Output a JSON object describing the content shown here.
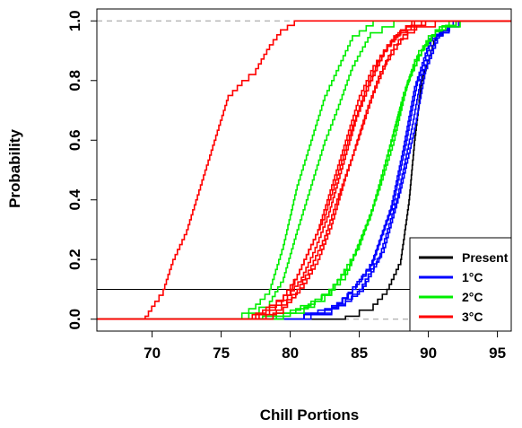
{
  "chart_data": {
    "type": "line",
    "title": "",
    "xlabel": "Chill Portions",
    "ylabel": "Probability",
    "xlim": [
      66,
      96
    ],
    "ylim": [
      -0.04,
      1.04
    ],
    "x_ticks": [
      "70",
      "75",
      "80",
      "85",
      "90",
      "95"
    ],
    "y_ticks": [
      "0.0",
      "0.2",
      "0.4",
      "0.6",
      "0.8",
      "1.0"
    ],
    "reference_lines": {
      "dashed_y": [
        0,
        1
      ],
      "solid_y": 0.1
    },
    "legend": {
      "placement": "bottom-right",
      "entries": [
        {
          "label": "Present",
          "color": "#000000"
        },
        {
          "label": "1°C",
          "color": "#0000ff"
        },
        {
          "label": "2°C",
          "color": "#00ee00"
        },
        {
          "label": "3°C",
          "color": "#ff0000"
        }
      ]
    },
    "series": [
      {
        "color": "#000000",
        "values": [
          [
            66,
            0
          ],
          [
            80,
            0
          ],
          [
            84,
            0.01
          ],
          [
            86,
            0.05
          ],
          [
            87,
            0.1
          ],
          [
            88,
            0.2
          ],
          [
            88.6,
            0.4
          ],
          [
            89,
            0.6
          ],
          [
            89.5,
            0.8
          ],
          [
            90.5,
            0.95
          ],
          [
            92,
            1
          ],
          [
            96,
            1
          ]
        ]
      },
      {
        "color": "#0000ff",
        "values": [
          [
            66,
            0
          ],
          [
            79,
            0
          ],
          [
            81,
            0.02
          ],
          [
            83,
            0.04
          ],
          [
            84.5,
            0.1
          ],
          [
            86,
            0.2
          ],
          [
            87.5,
            0.4
          ],
          [
            88.4,
            0.6
          ],
          [
            89.2,
            0.8
          ],
          [
            90.3,
            0.95
          ],
          [
            92,
            1
          ],
          [
            96,
            1
          ]
        ]
      },
      {
        "color": "#0000ff",
        "values": [
          [
            66,
            0
          ],
          [
            79.5,
            0
          ],
          [
            81.5,
            0.02
          ],
          [
            83.5,
            0.05
          ],
          [
            85,
            0.1
          ],
          [
            86.5,
            0.22
          ],
          [
            87.8,
            0.42
          ],
          [
            88.7,
            0.62
          ],
          [
            89.5,
            0.82
          ],
          [
            90.6,
            0.95
          ],
          [
            92,
            1
          ],
          [
            96,
            1
          ]
        ]
      },
      {
        "color": "#0000ff",
        "values": [
          [
            66,
            0
          ],
          [
            80,
            0
          ],
          [
            82,
            0.03
          ],
          [
            84,
            0.06
          ],
          [
            85.3,
            0.11
          ],
          [
            86.8,
            0.24
          ],
          [
            88,
            0.44
          ],
          [
            89,
            0.64
          ],
          [
            89.8,
            0.84
          ],
          [
            90.8,
            0.96
          ],
          [
            92.2,
            1
          ],
          [
            96,
            1
          ]
        ]
      },
      {
        "color": "#0000ff",
        "values": [
          [
            66,
            0
          ],
          [
            79,
            0
          ],
          [
            81,
            0.015
          ],
          [
            83,
            0.035
          ],
          [
            84.2,
            0.09
          ],
          [
            85.8,
            0.18
          ],
          [
            87.3,
            0.38
          ],
          [
            88.2,
            0.58
          ],
          [
            89,
            0.78
          ],
          [
            90.1,
            0.94
          ],
          [
            91.8,
            1
          ],
          [
            96,
            1
          ]
        ]
      },
      {
        "color": "#00ee00",
        "values": [
          [
            66,
            0
          ],
          [
            76,
            0
          ],
          [
            78,
            0.01
          ],
          [
            80,
            0.03
          ],
          [
            81.5,
            0.06
          ],
          [
            83,
            0.1
          ],
          [
            85,
            0.25
          ],
          [
            86.5,
            0.45
          ],
          [
            87.5,
            0.6
          ],
          [
            88.5,
            0.8
          ],
          [
            90,
            0.95
          ],
          [
            91.5,
            1
          ],
          [
            96,
            1
          ]
        ]
      },
      {
        "color": "#00ee00",
        "values": [
          [
            66,
            0
          ],
          [
            77,
            0
          ],
          [
            79,
            0.02
          ],
          [
            81,
            0.04
          ],
          [
            82.5,
            0.08
          ],
          [
            84,
            0.15
          ],
          [
            85.8,
            0.35
          ],
          [
            87,
            0.55
          ],
          [
            88,
            0.72
          ],
          [
            89,
            0.87
          ],
          [
            90.5,
            0.97
          ],
          [
            92,
            1
          ],
          [
            96,
            1
          ]
        ]
      },
      {
        "color": "#00ee00",
        "values": [
          [
            66,
            0
          ],
          [
            77.5,
            0
          ],
          [
            79.5,
            0.02
          ],
          [
            81.3,
            0.05
          ],
          [
            82.8,
            0.1
          ],
          [
            84.3,
            0.18
          ],
          [
            86,
            0.38
          ],
          [
            87.2,
            0.58
          ],
          [
            88.2,
            0.76
          ],
          [
            89.3,
            0.9
          ],
          [
            90.8,
            0.98
          ],
          [
            92.3,
            1
          ],
          [
            96,
            1
          ]
        ]
      },
      {
        "color": "#00ee00",
        "values": [
          [
            66,
            0
          ],
          [
            75.5,
            0
          ],
          [
            76.5,
            0.02
          ],
          [
            77.5,
            0.05
          ],
          [
            78.5,
            0.1
          ],
          [
            79.5,
            0.25
          ],
          [
            80.5,
            0.45
          ],
          [
            81.5,
            0.6
          ],
          [
            82.5,
            0.75
          ],
          [
            83.5,
            0.85
          ],
          [
            84.5,
            0.95
          ],
          [
            86,
            1
          ],
          [
            96,
            1
          ]
        ]
      },
      {
        "color": "#00ee00",
        "values": [
          [
            66,
            0
          ],
          [
            76,
            0
          ],
          [
            77,
            0.02
          ],
          [
            78.5,
            0.06
          ],
          [
            79.5,
            0.14
          ],
          [
            80.5,
            0.3
          ],
          [
            81.5,
            0.45
          ],
          [
            82.5,
            0.6
          ],
          [
            83.5,
            0.72
          ],
          [
            84.5,
            0.85
          ],
          [
            85.8,
            0.96
          ],
          [
            87.5,
            1
          ],
          [
            96,
            1
          ]
        ]
      },
      {
        "color": "#ff0000",
        "values": [
          [
            66,
            0
          ],
          [
            68.5,
            0
          ],
          [
            69.5,
            0.01
          ],
          [
            70.2,
            0.06
          ],
          [
            70.8,
            0.1
          ],
          [
            71.5,
            0.2
          ],
          [
            72.5,
            0.3
          ],
          [
            73.5,
            0.45
          ],
          [
            74.5,
            0.6
          ],
          [
            75.5,
            0.75
          ],
          [
            76.5,
            0.8
          ],
          [
            77.5,
            0.84
          ],
          [
            78.5,
            0.92
          ],
          [
            79.3,
            0.97
          ],
          [
            80.3,
            1
          ],
          [
            96,
            1
          ]
        ]
      },
      {
        "color": "#ff0000",
        "values": [
          [
            66,
            0
          ],
          [
            76,
            0
          ],
          [
            77.5,
            0.02
          ],
          [
            79,
            0.06
          ],
          [
            80,
            0.1
          ],
          [
            81,
            0.2
          ],
          [
            82,
            0.3
          ],
          [
            83,
            0.45
          ],
          [
            84,
            0.6
          ],
          [
            85,
            0.75
          ],
          [
            86,
            0.85
          ],
          [
            87,
            0.92
          ],
          [
            88,
            0.97
          ],
          [
            89.5,
            1
          ],
          [
            96,
            1
          ]
        ]
      },
      {
        "color": "#ff0000",
        "values": [
          [
            66,
            0
          ],
          [
            76.5,
            0
          ],
          [
            78,
            0.03
          ],
          [
            79.5,
            0.08
          ],
          [
            80.5,
            0.15
          ],
          [
            81.5,
            0.25
          ],
          [
            82.5,
            0.35
          ],
          [
            83.5,
            0.5
          ],
          [
            84.5,
            0.65
          ],
          [
            85.5,
            0.78
          ],
          [
            86.5,
            0.88
          ],
          [
            87.5,
            0.95
          ],
          [
            88.8,
            1
          ],
          [
            96,
            1
          ]
        ]
      },
      {
        "color": "#ff0000",
        "values": [
          [
            66,
            0
          ],
          [
            77,
            0
          ],
          [
            78.5,
            0.03
          ],
          [
            79.8,
            0.08
          ],
          [
            80.8,
            0.14
          ],
          [
            81.8,
            0.24
          ],
          [
            82.8,
            0.36
          ],
          [
            83.8,
            0.52
          ],
          [
            84.8,
            0.68
          ],
          [
            85.8,
            0.8
          ],
          [
            86.8,
            0.9
          ],
          [
            87.8,
            0.96
          ],
          [
            89,
            1
          ],
          [
            96,
            1
          ]
        ]
      },
      {
        "color": "#ff0000",
        "values": [
          [
            66,
            0
          ],
          [
            77.5,
            0
          ],
          [
            79,
            0.03
          ],
          [
            80.5,
            0.1
          ],
          [
            81.5,
            0.18
          ],
          [
            82.5,
            0.28
          ],
          [
            83.5,
            0.42
          ],
          [
            84.5,
            0.55
          ],
          [
            85.5,
            0.7
          ],
          [
            86.5,
            0.83
          ],
          [
            87.5,
            0.92
          ],
          [
            88.5,
            0.97
          ],
          [
            89.8,
            1
          ],
          [
            96,
            1
          ]
        ]
      },
      {
        "color": "#ff0000",
        "values": [
          [
            66,
            0
          ],
          [
            78,
            0
          ],
          [
            79.5,
            0.04
          ],
          [
            81,
            0.12
          ],
          [
            82,
            0.2
          ],
          [
            83,
            0.32
          ],
          [
            84,
            0.48
          ],
          [
            85,
            0.62
          ],
          [
            86,
            0.76
          ],
          [
            87,
            0.87
          ],
          [
            88,
            0.94
          ],
          [
            89,
            0.98
          ],
          [
            90.5,
            1
          ],
          [
            96,
            1
          ]
        ]
      }
    ]
  }
}
